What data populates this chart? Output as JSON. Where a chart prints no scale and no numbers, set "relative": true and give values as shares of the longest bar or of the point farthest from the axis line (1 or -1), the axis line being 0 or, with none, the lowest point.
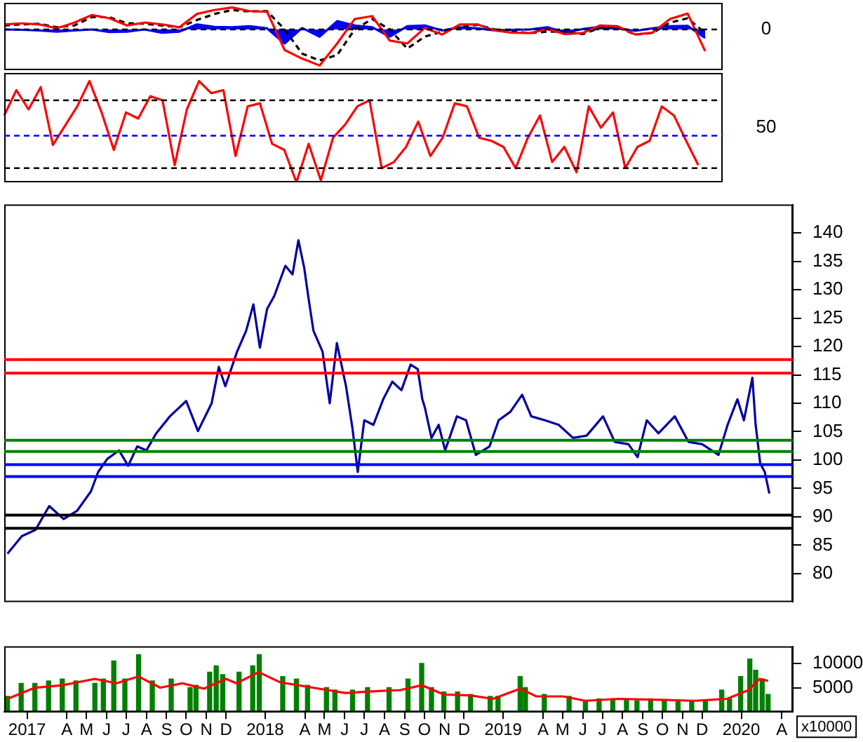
{
  "chart_data": [
    {
      "type": "line",
      "relative": true,
      "tick_labels": false,
      "categories": [
        null,
        null,
        null,
        null,
        null,
        null,
        null,
        null,
        null,
        null,
        null,
        null,
        null,
        null,
        null,
        null,
        null,
        null,
        null,
        null,
        null,
        null,
        null,
        null,
        null,
        null,
        null,
        null,
        null,
        null,
        null,
        null,
        null,
        null,
        null,
        null,
        null,
        null,
        null,
        null,
        null,
        null
      ],
      "series": [
        {
          "type": "area",
          "color": "#0000ff",
          "values": [
            0,
            -0.01,
            -0.03,
            -0.06,
            -0.03,
            0,
            -0.07,
            -0.06,
            0,
            -0.09,
            -0.06,
            0.14,
            0.07,
            0.06,
            0.09,
            0.03,
            -0.39,
            0.04,
            -0.2,
            0.23,
            0.11,
            0.06,
            -0.2,
            0.09,
            0.11,
            -0.03,
            0.06,
            0.03,
            -0.03,
            -0.01,
            0,
            0.06,
            -0.09,
            0.01,
            0.07,
            0.03,
            -0.04,
            0.03,
            0.09,
            0.1,
            -0.24,
            null
          ]
        },
        {
          "color": "#000000",
          "line_style": "dashed",
          "values": [
            0.11,
            0.14,
            0.16,
            0.06,
            0.11,
            0.34,
            0.34,
            0.17,
            0.16,
            0.11,
            0.06,
            0.26,
            0.43,
            0.54,
            0.5,
            0.51,
            0,
            -0.67,
            -0.86,
            -0.71,
            0,
            0.29,
            0,
            -0.53,
            -0.2,
            -0.06,
            0.06,
            0.13,
            0,
            -0.06,
            -0.1,
            -0.06,
            -0.06,
            -0.13,
            0.04,
            0.06,
            -0.14,
            -0.1,
            0.19,
            0.31,
            -0.1,
            null
          ]
        },
        {
          "color": "#ff0000",
          "values": [
            0.14,
            0.17,
            0.14,
            0.03,
            0.19,
            0.4,
            0.31,
            0.11,
            0.19,
            0.14,
            0.06,
            0.43,
            0.54,
            0.61,
            0.51,
            0.49,
            -0.57,
            -0.81,
            -1,
            -0.39,
            0.29,
            0.37,
            -0.31,
            -0.39,
            0.04,
            -0.14,
            0.14,
            0.14,
            -0.03,
            -0.09,
            -0.1,
            0.01,
            -0.13,
            -0.1,
            0.11,
            0.09,
            -0.14,
            -0.09,
            0.29,
            0.44,
            -0.6,
            null
          ]
        }
      ],
      "ref_lines": [
        {
          "axis": "y",
          "value": 0,
          "label": "0",
          "color": "#000000",
          "line_style": "dashed"
        }
      ]
    },
    {
      "type": "line",
      "relative": true,
      "tick_labels": false,
      "categories": [
        null,
        null,
        null,
        null,
        null,
        null,
        null,
        null,
        null,
        null,
        null,
        null,
        null,
        null,
        null,
        null,
        null,
        null,
        null,
        null,
        null,
        null,
        null,
        null,
        null,
        null,
        null,
        null,
        null,
        null,
        null,
        null,
        null,
        null,
        null,
        null,
        null,
        null,
        null,
        null,
        null,
        null,
        null,
        null,
        null,
        null,
        null,
        null,
        null,
        null,
        null,
        null,
        null,
        null,
        null,
        null,
        null,
        null,
        null,
        null
      ],
      "series": [
        {
          "color": "#ff0000",
          "values": [
            0.66,
            0.91,
            0.72,
            0.94,
            0.37,
            0.56,
            0.75,
            1,
            0.69,
            0.32,
            0.69,
            0.63,
            0.85,
            0.81,
            0.17,
            0.72,
            1,
            0.88,
            0.91,
            0.26,
            0.75,
            0.78,
            0.38,
            0.32,
            0,
            0.38,
            0.02,
            0.44,
            0.57,
            0.75,
            0.81,
            0.14,
            0.2,
            0.35,
            0.6,
            0.26,
            0.44,
            0.78,
            0.75,
            0.44,
            0.41,
            0.35,
            0.14,
            0.44,
            0.66,
            0.2,
            0.35,
            0.1,
            0.75,
            0.54,
            0.69,
            0.14,
            0.35,
            0.41,
            0.75,
            0.66,
            0.41,
            0.17,
            null,
            null
          ]
        }
      ],
      "ref_lines": [
        {
          "axis": "y",
          "value": 0.81,
          "label": null,
          "color": "#000000",
          "line_style": "dashed"
        },
        {
          "axis": "y",
          "value": 0.46,
          "label": null,
          "color": "#0000ff",
          "line_style": "dashed"
        },
        {
          "axis": "y",
          "value": 0.14,
          "label": null,
          "color": "#000000",
          "line_style": "dashed"
        }
      ],
      "annotations": [
        "50"
      ]
    },
    {
      "type": "line",
      "tick_labels": "y",
      "xlim": [
        "2017-01-10",
        "2020-05-03"
      ],
      "ylim": [
        75,
        145
      ],
      "yticks": [
        80,
        85,
        90,
        95,
        100,
        105,
        110,
        115,
        120,
        125,
        130,
        135,
        140
      ],
      "x": [
        "2017-01-15",
        "2017-02-06",
        "2017-02-27",
        "2017-03-20",
        "2017-04-11",
        "2017-05-02",
        "2017-05-23",
        "2017-06-03",
        "2017-06-17",
        "2017-07-05",
        "2017-07-19",
        "2017-08-02",
        "2017-08-16",
        "2017-08-31",
        "2017-09-21",
        "2017-10-16",
        "2017-11-03",
        "2017-11-24",
        "2017-12-05",
        "2017-12-15",
        "2018-01-02",
        "2018-01-16",
        "2018-01-27",
        "2018-02-06",
        "2018-02-17",
        "2018-02-28",
        "2018-03-17",
        "2018-03-28",
        "2018-04-06",
        "2018-04-15",
        "2018-04-21",
        "2018-04-29",
        "2018-05-13",
        "2018-05-24",
        "2018-06-04",
        "2018-06-18",
        "2018-06-28",
        "2018-07-06",
        "2018-07-16",
        "2018-07-30",
        "2018-08-14",
        "2018-08-28",
        "2018-09-11",
        "2018-09-25",
        "2018-10-06",
        "2018-10-13",
        "2018-10-17",
        "2018-10-27",
        "2018-11-07",
        "2018-11-17",
        "2018-12-05",
        "2018-12-19",
        "2019-01-03",
        "2019-01-24",
        "2019-02-07",
        "2019-02-25",
        "2019-03-15",
        "2019-03-29",
        "2019-04-19",
        "2019-05-10",
        "2019-06-01",
        "2019-06-22",
        "2019-07-17",
        "2019-08-04",
        "2019-08-25",
        "2019-09-08",
        "2019-09-22",
        "2019-10-10",
        "2019-11-04",
        "2019-11-25",
        "2019-12-16",
        "2020-01-10",
        "2020-01-24",
        "2020-02-08",
        "2020-02-18",
        "2020-03-02",
        "2020-03-07",
        "2020-03-14",
        "2020-03-21",
        "2020-03-28"
      ],
      "series": [
        {
          "color": "#0000a0",
          "values": [
            83.5,
            86.6,
            87.7,
            91.9,
            89.6,
            91.1,
            94.5,
            97.9,
            100.2,
            101.7,
            99.0,
            102.4,
            101.7,
            104.7,
            107.7,
            110.4,
            105.1,
            110.0,
            116.4,
            113.0,
            119.1,
            122.8,
            127.4,
            119.8,
            126.6,
            128.9,
            134.2,
            132.7,
            138.7,
            133.8,
            128.9,
            122.8,
            119.1,
            110.0,
            120.6,
            113.0,
            105.5,
            97.9,
            107.0,
            106.2,
            110.7,
            113.8,
            112.3,
            116.8,
            116.0,
            110.7,
            109.2,
            103.9,
            106.2,
            101.7,
            107.7,
            107.0,
            100.9,
            102.4,
            107.0,
            108.5,
            111.5,
            107.7,
            107.0,
            106.2,
            103.9,
            104.3,
            107.7,
            103.2,
            102.8,
            100.5,
            107.0,
            104.7,
            107.7,
            103.2,
            102.8,
            100.9,
            106.2,
            110.7,
            107.0,
            114.5,
            106.2,
            99.4,
            97.9,
            94.1
          ]
        }
      ],
      "ref_lines": [
        {
          "axis": "y",
          "value": 117.7,
          "label": null,
          "color": "#ff0000",
          "line_style": "solid"
        },
        {
          "axis": "y",
          "value": 115.3,
          "label": null,
          "color": "#ff0000",
          "line_style": "solid"
        },
        {
          "axis": "y",
          "value": 103.5,
          "label": null,
          "color": "#008000",
          "line_style": "solid"
        },
        {
          "axis": "y",
          "value": 101.5,
          "label": null,
          "color": "#008000",
          "line_style": "solid"
        },
        {
          "axis": "y",
          "value": 99.2,
          "label": null,
          "color": "#0000ff",
          "line_style": "solid"
        },
        {
          "axis": "y",
          "value": 97.1,
          "label": null,
          "color": "#0000ff",
          "line_style": "solid"
        },
        {
          "axis": "y",
          "value": 90.3,
          "label": null,
          "color": "#000000",
          "line_style": "solid"
        },
        {
          "axis": "y",
          "value": 88.0,
          "label": null,
          "color": "#000000",
          "line_style": "solid"
        }
      ]
    },
    {
      "type": "bar",
      "ylabel": "x10000",
      "xlim": [
        "2017-01-10",
        "2020-05-03"
      ],
      "ylim": [
        0,
        13500
      ],
      "yticks": [
        5000,
        10000
      ],
      "xticks": [
        {
          "value": "2017-02-14",
          "label": "2017"
        },
        {
          "value": "2017-04-16",
          "label": "A"
        },
        {
          "value": "2017-05-16",
          "label": "M"
        },
        {
          "value": "2017-06-16",
          "label": "J"
        },
        {
          "value": "2017-07-16",
          "label": "J"
        },
        {
          "value": "2017-08-16",
          "label": "A"
        },
        {
          "value": "2017-09-16",
          "label": "S"
        },
        {
          "value": "2017-10-16",
          "label": "O"
        },
        {
          "value": "2017-11-16",
          "label": "N"
        },
        {
          "value": "2017-12-16",
          "label": "D"
        },
        {
          "value": "2018-02-14",
          "label": "2018"
        },
        {
          "value": "2018-04-16",
          "label": "A"
        },
        {
          "value": "2018-05-16",
          "label": "M"
        },
        {
          "value": "2018-06-16",
          "label": "J"
        },
        {
          "value": "2018-07-16",
          "label": "J"
        },
        {
          "value": "2018-08-16",
          "label": "A"
        },
        {
          "value": "2018-09-16",
          "label": "S"
        },
        {
          "value": "2018-10-16",
          "label": "O"
        },
        {
          "value": "2018-11-16",
          "label": "N"
        },
        {
          "value": "2018-12-16",
          "label": "D"
        },
        {
          "value": "2019-02-14",
          "label": "2019"
        },
        {
          "value": "2019-04-16",
          "label": "A"
        },
        {
          "value": "2019-05-16",
          "label": "M"
        },
        {
          "value": "2019-06-16",
          "label": "J"
        },
        {
          "value": "2019-07-16",
          "label": "J"
        },
        {
          "value": "2019-08-16",
          "label": "A"
        },
        {
          "value": "2019-09-16",
          "label": "S"
        },
        {
          "value": "2019-10-16",
          "label": "O"
        },
        {
          "value": "2019-11-16",
          "label": "N"
        },
        {
          "value": "2019-12-16",
          "label": "D"
        },
        {
          "value": "2020-02-14",
          "label": "2020"
        },
        {
          "value": "2020-04-16",
          "label": "A"
        }
      ],
      "series": [
        {
          "color": "#008000",
          "x": [
            "2017-01-15",
            "2017-02-05",
            "2017-02-26",
            "2017-03-19",
            "2017-04-09",
            "2017-04-30",
            "2017-05-29",
            "2017-06-11",
            "2017-06-27",
            "2017-07-14",
            "2017-08-04",
            "2017-08-25",
            "2017-09-23",
            "2017-10-22",
            "2017-10-31",
            "2017-11-21",
            "2017-12-01",
            "2017-12-11",
            "2018-01-05",
            "2018-01-26",
            "2018-02-05",
            "2018-03-13",
            "2018-04-03",
            "2018-04-20",
            "2018-05-19",
            "2018-06-01",
            "2018-06-28",
            "2018-07-21",
            "2018-08-23",
            "2018-09-21",
            "2018-10-12",
            "2018-10-27",
            "2018-11-15",
            "2018-12-06",
            "2018-12-26",
            "2019-01-25",
            "2019-02-06",
            "2019-03-12",
            "2019-03-20",
            "2019-04-18",
            "2019-05-26",
            "2019-06-20",
            "2019-07-11",
            "2019-08-01",
            "2019-08-22",
            "2019-09-07",
            "2019-09-28",
            "2019-10-19",
            "2019-11-09",
            "2019-11-30",
            "2019-12-21",
            "2020-01-15",
            "2020-01-27",
            "2020-02-13",
            "2020-02-27",
            "2020-03-07",
            "2020-03-17",
            "2020-03-26"
          ],
          "values": [
            3200,
            5900,
            5900,
            6400,
            6800,
            6400,
            5900,
            6800,
            10500,
            6800,
            11800,
            6400,
            6800,
            5000,
            5500,
            8200,
            9500,
            7700,
            8200,
            9500,
            11800,
            7300,
            6800,
            5500,
            5000,
            4500,
            4500,
            5000,
            5000,
            6800,
            10000,
            5000,
            4100,
            4100,
            3600,
            3200,
            3200,
            7300,
            5000,
            3600,
            3200,
            2300,
            2700,
            2700,
            2700,
            2300,
            2700,
            2500,
            2300,
            2100,
            2300,
            4500,
            2700,
            7300,
            10900,
            8600,
            6800,
            3600
          ]
        },
        {
          "type": "line",
          "color": "#ff0000",
          "x": [
            "2017-01-15",
            "2017-02-26",
            "2017-04-09",
            "2017-05-29",
            "2017-07-01",
            "2017-08-04",
            "2017-09-06",
            "2017-10-10",
            "2017-11-12",
            "2017-12-16",
            "2018-01-01",
            "2018-02-04",
            "2018-03-09",
            "2018-04-28",
            "2018-06-17",
            "2018-08-06",
            "2018-09-09",
            "2018-10-12",
            "2018-11-15",
            "2018-12-26",
            "2019-01-29",
            "2019-03-12",
            "2019-04-06",
            "2019-05-17",
            "2019-06-20",
            "2019-08-09",
            "2019-10-15",
            "2019-12-04",
            "2020-01-23",
            "2020-02-25",
            "2020-03-13",
            "2020-03-26"
          ],
          "values": [
            2700,
            5000,
            5500,
            6800,
            5900,
            7300,
            5000,
            5900,
            4800,
            6800,
            5900,
            8200,
            6100,
            5000,
            3900,
            4300,
            4500,
            5500,
            3600,
            3400,
            2700,
            4800,
            3200,
            3200,
            2300,
            2700,
            2500,
            2300,
            2700,
            4500,
            6800,
            6400
          ]
        }
      ]
    }
  ]
}
